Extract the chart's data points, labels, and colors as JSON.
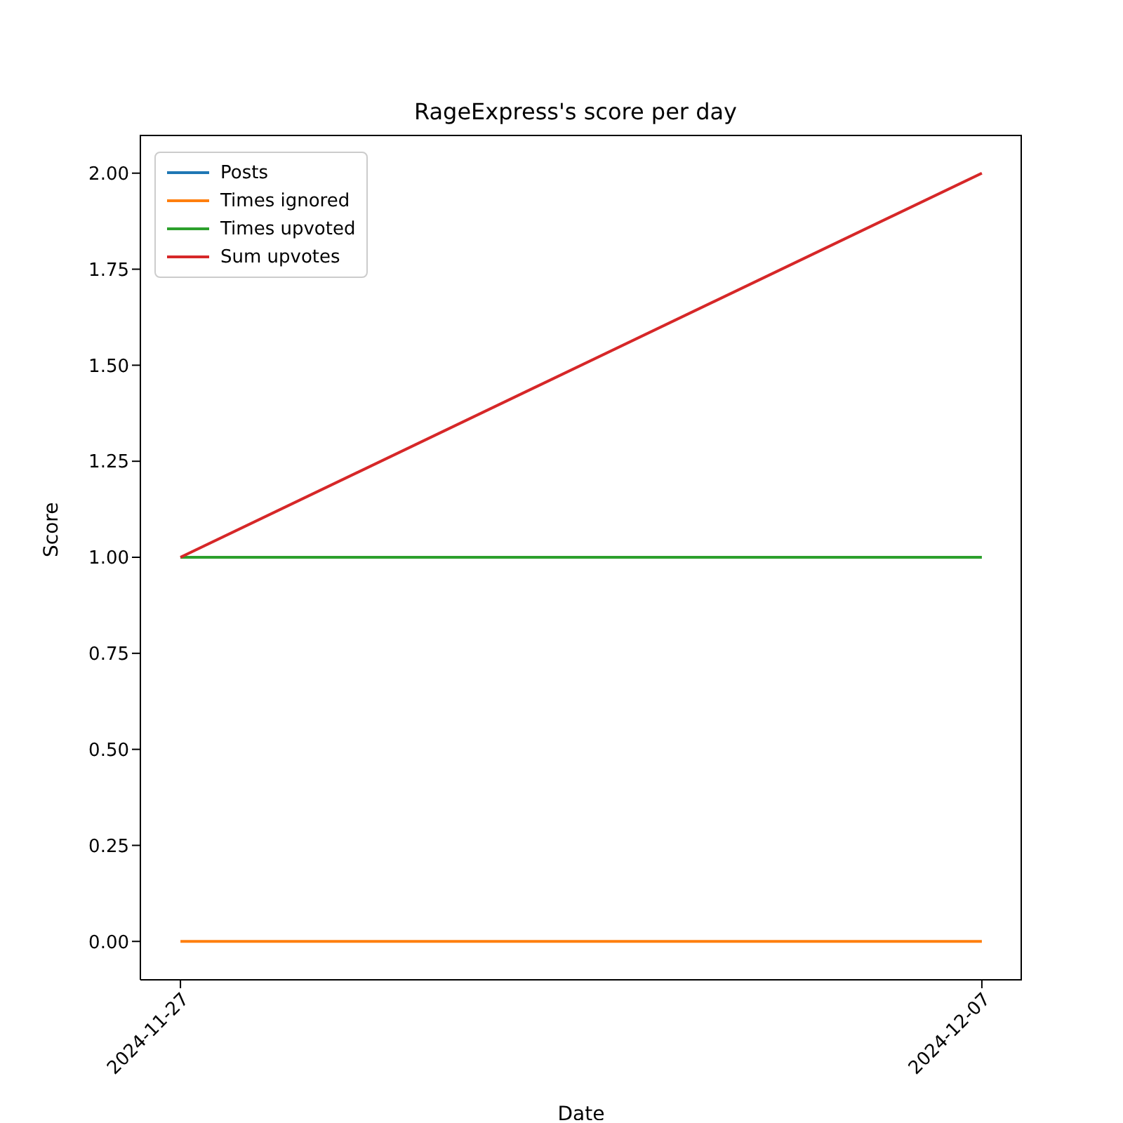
{
  "chart_data": {
    "type": "line",
    "title": "RageExpress's score per day",
    "xlabel": "Date",
    "ylabel": "Score",
    "x": [
      "2024-11-27",
      "2024-12-07"
    ],
    "series": [
      {
        "name": "Posts",
        "color": "#1f77b4",
        "values": [
          null,
          null
        ]
      },
      {
        "name": "Times ignored",
        "color": "#ff7f0e",
        "values": [
          0,
          0
        ]
      },
      {
        "name": "Times upvoted",
        "color": "#2ca02c",
        "values": [
          1,
          1
        ]
      },
      {
        "name": "Sum upvotes",
        "color": "#d62728",
        "values": [
          1,
          2
        ]
      }
    ],
    "xlim": [
      "2024-11-26T12:00",
      "2024-12-07T12:00"
    ],
    "xticks": [
      "2024-11-27",
      "2024-12-07"
    ],
    "ylim": [
      -0.1,
      2.1
    ],
    "yticks": [
      {
        "value": 0,
        "label": "0.00"
      },
      {
        "value": 0.25,
        "label": "0.25"
      },
      {
        "value": 0.5,
        "label": "0.50"
      },
      {
        "value": 0.75,
        "label": "0.75"
      },
      {
        "value": 1,
        "label": "1.00"
      },
      {
        "value": 1.25,
        "label": "1.25"
      },
      {
        "value": 1.5,
        "label": "1.50"
      },
      {
        "value": 1.75,
        "label": "1.75"
      },
      {
        "value": 2,
        "label": "2.00"
      }
    ],
    "legend": "top left"
  }
}
